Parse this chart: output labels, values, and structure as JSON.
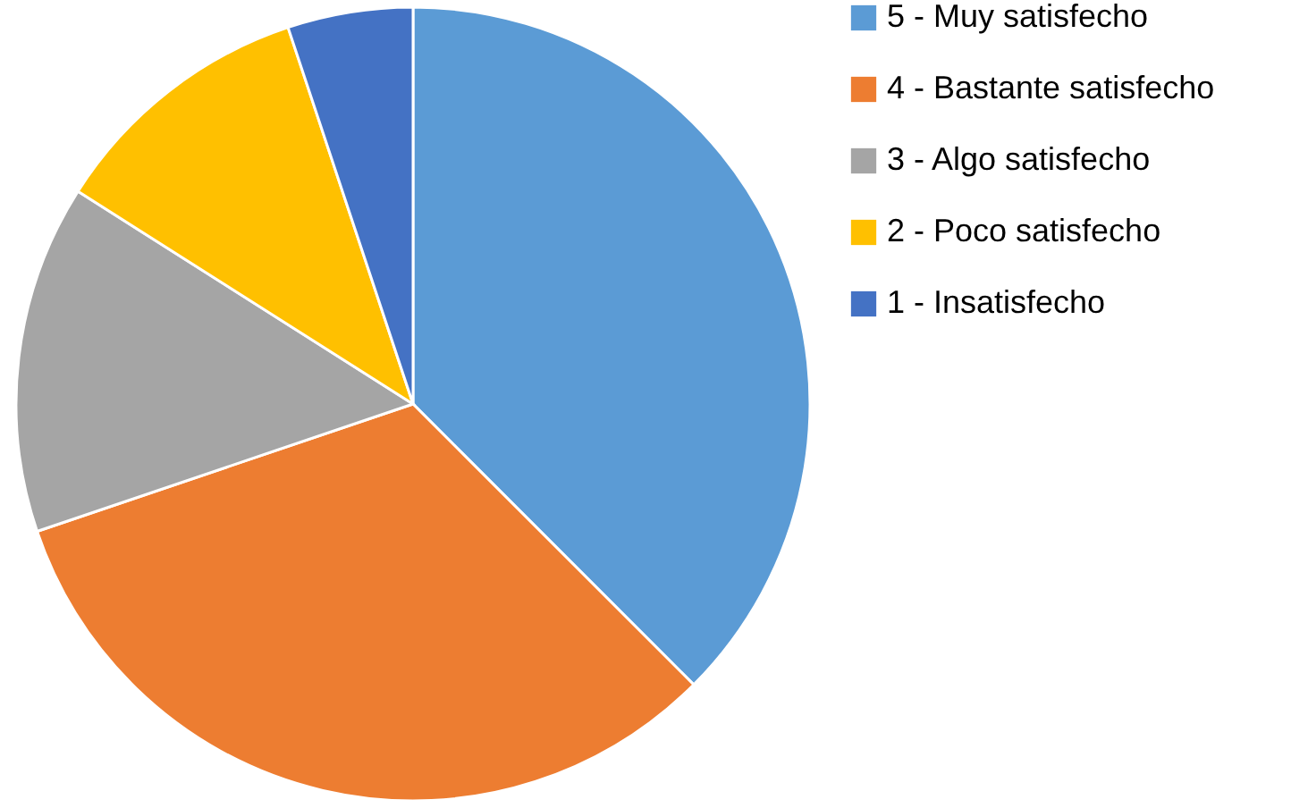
{
  "chart_data": {
    "type": "pie",
    "categories": [
      "5 - Muy satisfecho",
      "4 - Bastante satisfecho",
      "3 - Algo satisfecho",
      "2 - Poco satisfecho",
      "1 - Insatisfecho"
    ],
    "values": [
      37.5,
      32.3,
      14.2,
      10.9,
      5.1
    ],
    "colors": [
      "#5b9bd5",
      "#ed7d31",
      "#a5a5a5",
      "#ffc000",
      "#4472c4"
    ],
    "legend": "right"
  }
}
